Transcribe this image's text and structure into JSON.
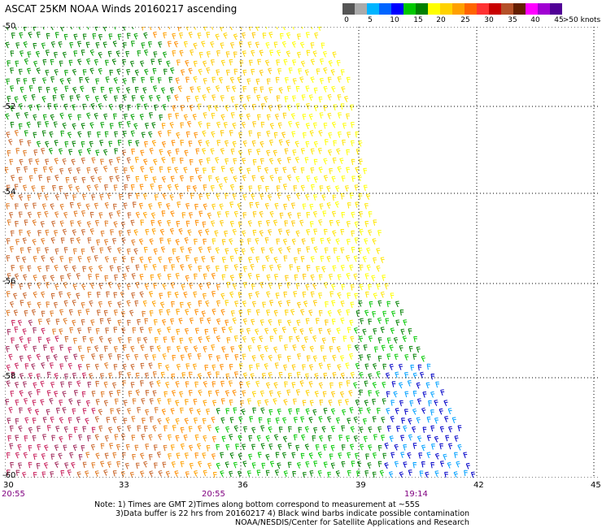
{
  "title": "ASCAT 25KM NOAA Winds 20160217 ascending",
  "colorbar": {
    "colors": [
      "#555555",
      "#aaaaaa",
      "#00b4ff",
      "#0064ff",
      "#0000ff",
      "#00c800",
      "#008000",
      "#ffff00",
      "#ffd200",
      "#ffa000",
      "#ff6400",
      "#ff3232",
      "#c80000",
      "#b45028",
      "#641e00",
      "#ff00ff",
      "#a000d2",
      "#500096"
    ],
    "labels": [
      "0",
      "5",
      "10",
      "15",
      "20",
      "25",
      "30",
      "35",
      "40",
      "45",
      ">50 knots"
    ]
  },
  "map": {
    "lon_labels": [
      "30",
      "33",
      "36",
      "39",
      "42",
      "45"
    ],
    "lat_labels": [
      "-50",
      "-52",
      "-54",
      "-56",
      "-58",
      "-60"
    ],
    "time_labels": [
      "20:55",
      "20:55",
      "19:14"
    ]
  },
  "notes": [
    "Note: 1) Times are GMT 2)Times along bottom correspond to measurement at ~55S",
    "3)Data buffer is 22 hrs from 20160217 4) Black wind barbs indicate possible contamination",
    "NOAA/NESDIS/Center for Satellite Applications and Research"
  ]
}
